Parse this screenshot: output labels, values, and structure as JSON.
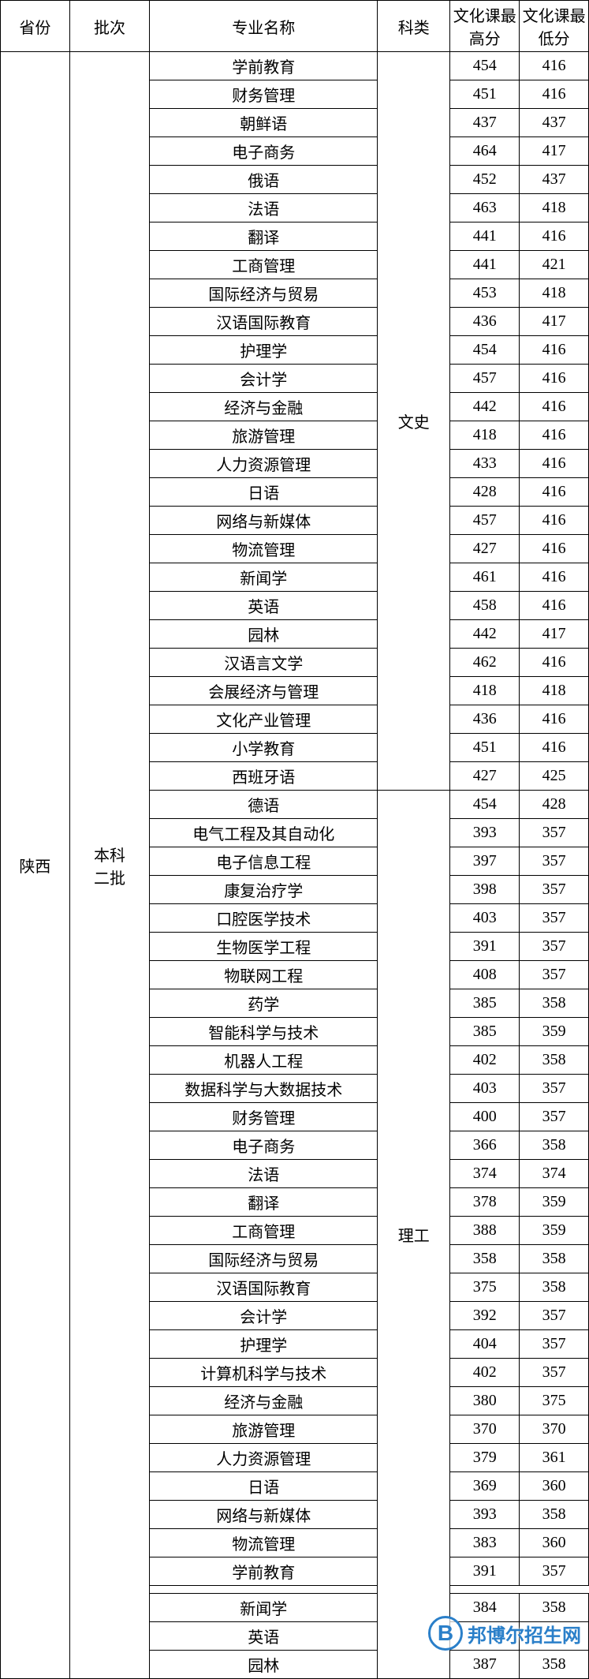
{
  "table": {
    "headers": {
      "province": "省份",
      "batch": "批次",
      "major": "专业名称",
      "category": "科类",
      "high": "文化课最高分",
      "low": "文化课最低分"
    },
    "province": "陕西",
    "batch_line1": "本科",
    "batch_line2": "二批",
    "category1": "文史",
    "category2": "理工",
    "section1": [
      {
        "major": "学前教育",
        "high": "454",
        "low": "416"
      },
      {
        "major": "财务管理",
        "high": "451",
        "low": "416"
      },
      {
        "major": "朝鲜语",
        "high": "437",
        "low": "437"
      },
      {
        "major": "电子商务",
        "high": "464",
        "low": "417"
      },
      {
        "major": "俄语",
        "high": "452",
        "low": "437"
      },
      {
        "major": "法语",
        "high": "463",
        "low": "418"
      },
      {
        "major": "翻译",
        "high": "441",
        "low": "416"
      },
      {
        "major": "工商管理",
        "high": "441",
        "low": "421"
      },
      {
        "major": "国际经济与贸易",
        "high": "453",
        "low": "418"
      },
      {
        "major": "汉语国际教育",
        "high": "436",
        "low": "417"
      },
      {
        "major": "护理学",
        "high": "454",
        "low": "416"
      },
      {
        "major": "会计学",
        "high": "457",
        "low": "416"
      },
      {
        "major": "经济与金融",
        "high": "442",
        "low": "416"
      },
      {
        "major": "旅游管理",
        "high": "418",
        "low": "416"
      },
      {
        "major": "人力资源管理",
        "high": "433",
        "low": "416"
      },
      {
        "major": "日语",
        "high": "428",
        "low": "416"
      },
      {
        "major": "网络与新媒体",
        "high": "457",
        "low": "416"
      },
      {
        "major": "物流管理",
        "high": "427",
        "low": "416"
      },
      {
        "major": "新闻学",
        "high": "461",
        "low": "416"
      },
      {
        "major": "英语",
        "high": "458",
        "low": "416"
      },
      {
        "major": "园林",
        "high": "442",
        "low": "417"
      },
      {
        "major": "汉语言文学",
        "high": "462",
        "low": "416"
      },
      {
        "major": "会展经济与管理",
        "high": "418",
        "low": "418"
      },
      {
        "major": "文化产业管理",
        "high": "436",
        "low": "416"
      },
      {
        "major": "小学教育",
        "high": "451",
        "low": "416"
      },
      {
        "major": "西班牙语",
        "high": "427",
        "low": "425"
      }
    ],
    "section2_first": {
      "major": "德语",
      "high": "454",
      "low": "428"
    },
    "section2": [
      {
        "major": "电气工程及其自动化",
        "high": "393",
        "low": "357"
      },
      {
        "major": "电子信息工程",
        "high": "397",
        "low": "357"
      },
      {
        "major": "康复治疗学",
        "high": "398",
        "low": "357"
      },
      {
        "major": "口腔医学技术",
        "high": "403",
        "low": "357"
      },
      {
        "major": "生物医学工程",
        "high": "391",
        "low": "357"
      },
      {
        "major": "物联网工程",
        "high": "408",
        "low": "357"
      },
      {
        "major": "药学",
        "high": "385",
        "low": "358"
      },
      {
        "major": "智能科学与技术",
        "high": "385",
        "low": "359"
      },
      {
        "major": "机器人工程",
        "high": "402",
        "low": "358"
      },
      {
        "major": "数据科学与大数据技术",
        "high": "403",
        "low": "357"
      },
      {
        "major": "财务管理",
        "high": "400",
        "low": "357"
      },
      {
        "major": "电子商务",
        "high": "366",
        "low": "358"
      },
      {
        "major": "法语",
        "high": "374",
        "low": "374"
      },
      {
        "major": "翻译",
        "high": "378",
        "low": "359"
      },
      {
        "major": "工商管理",
        "high": "388",
        "low": "359"
      },
      {
        "major": "国际经济与贸易",
        "high": "358",
        "low": "358"
      },
      {
        "major": "汉语国际教育",
        "high": "375",
        "low": "358"
      },
      {
        "major": "会计学",
        "high": "392",
        "low": "357"
      },
      {
        "major": "护理学",
        "high": "404",
        "low": "357"
      },
      {
        "major": "计算机科学与技术",
        "high": "402",
        "low": "357"
      },
      {
        "major": "经济与金融",
        "high": "380",
        "low": "375"
      },
      {
        "major": "旅游管理",
        "high": "370",
        "low": "370"
      },
      {
        "major": "人力资源管理",
        "high": "379",
        "low": "361"
      },
      {
        "major": "日语",
        "high": "369",
        "low": "360"
      },
      {
        "major": "网络与新媒体",
        "high": "393",
        "low": "358"
      },
      {
        "major": "物流管理",
        "high": "383",
        "low": "360"
      },
      {
        "major": "学前教育",
        "high": "391",
        "low": "357"
      }
    ],
    "section3": [
      {
        "major": "新闻学",
        "high": "384",
        "low": "358"
      },
      {
        "major": "英语",
        "high": "",
        "low": ""
      },
      {
        "major": "园林",
        "high": "387",
        "low": "358"
      }
    ]
  },
  "watermark": {
    "logo": "B",
    "text": "邦博尔招生网"
  },
  "style": {
    "border_color": "#000000",
    "bg_color": "#ffffff",
    "text_color": "#000000",
    "font_size": 20,
    "watermark_color": "#2a7fc9"
  }
}
